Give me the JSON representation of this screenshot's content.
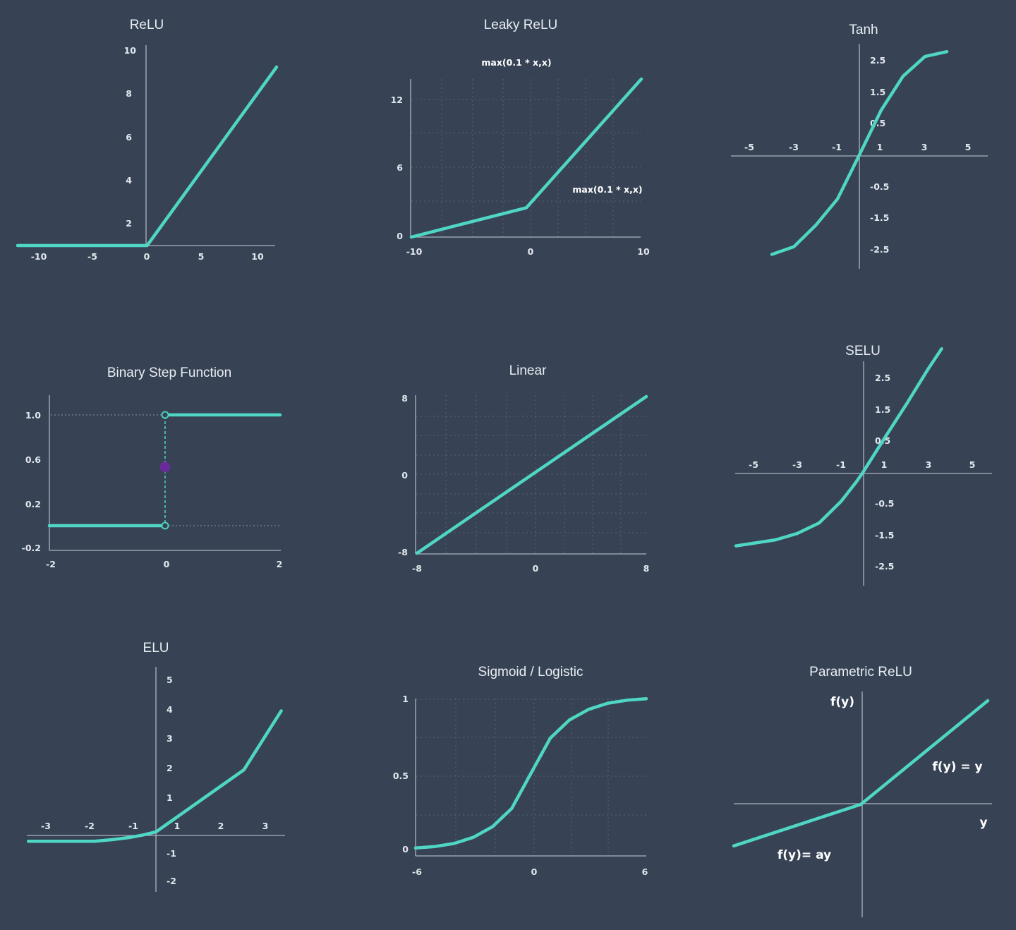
{
  "colors": {
    "background": "#374354",
    "curve": "#4fd6c4",
    "axis": "#aab3bf",
    "text": "#e8edf2",
    "marker": "#6a2b9a"
  },
  "chart_data": [
    {
      "id": "relu",
      "type": "line",
      "title": "ReLU",
      "xlim": [
        -11.5,
        11.5
      ],
      "ylim": [
        0,
        10
      ],
      "xticks": [
        "-10",
        "-5",
        "0",
        "5",
        "10"
      ],
      "yticks": [
        "2",
        "4",
        "6",
        "8",
        "10"
      ],
      "series": [
        {
          "x": [
            -11.5,
            0,
            11.5
          ],
          "y": [
            0,
            0,
            9.2
          ]
        }
      ],
      "grid": false
    },
    {
      "id": "leaky-relu",
      "type": "line",
      "title": "Leaky ReLU",
      "xlim": [
        -10,
        10
      ],
      "ylim": [
        0,
        14
      ],
      "xticks": [
        "-10",
        "0",
        "10"
      ],
      "yticks": [
        "0",
        "6",
        "12"
      ],
      "series": [
        {
          "x": [
            -10,
            0,
            10
          ],
          "y": [
            0,
            2.6,
            14
          ]
        }
      ],
      "annotations": [
        "max(0.1 * x,x)",
        "max(0.1 * x,x)"
      ],
      "grid": true
    },
    {
      "id": "tanh",
      "type": "line",
      "title": "Tanh",
      "xlim": [
        -5,
        5
      ],
      "ylim": [
        -2.5,
        2.5
      ],
      "xticks": [
        "-5",
        "-3",
        "-1",
        "1",
        "3",
        "5"
      ],
      "yticks": [
        "2.5",
        "1.5",
        "0.5",
        "-0.5",
        "-1.5",
        "-2.5"
      ],
      "series": [
        {
          "x": [
            -4,
            -3,
            -2,
            -1,
            0,
            1,
            2,
            3,
            4
          ],
          "y": [
            -2.64,
            -2.44,
            -1.87,
            -1.17,
            0,
            1.19,
            2.09,
            2.61,
            2.74
          ]
        }
      ],
      "grid": false
    },
    {
      "id": "binary-step",
      "type": "line",
      "title": "Binary Step Function",
      "xlim": [
        -2,
        2
      ],
      "ylim": [
        -0.2,
        1.0
      ],
      "xticks": [
        "-2",
        "0",
        "2"
      ],
      "yticks": [
        "1.0",
        "0.6",
        "0.2",
        "-0.2"
      ],
      "series": [
        {
          "x": [
            -2,
            0,
            0,
            2
          ],
          "y": [
            0,
            0,
            1,
            1
          ]
        }
      ],
      "marker": {
        "x": 0,
        "y": 0.5
      },
      "grid": false
    },
    {
      "id": "linear",
      "type": "line",
      "title": "Linear",
      "xlim": [
        -8,
        8
      ],
      "ylim": [
        -8,
        8
      ],
      "xticks": [
        "-8",
        "0",
        "8"
      ],
      "yticks": [
        "8",
        "0",
        "-8"
      ],
      "series": [
        {
          "x": [
            -8,
            8
          ],
          "y": [
            -8,
            8
          ]
        }
      ],
      "grid": true
    },
    {
      "id": "selu",
      "type": "line",
      "title": "SELU",
      "xlim": [
        -5,
        5
      ],
      "ylim": [
        -2.5,
        2.5
      ],
      "xticks": [
        "-5",
        "-3",
        "-1",
        "1",
        "3",
        "5"
      ],
      "yticks": [
        "2.5",
        "1.5",
        "0.5",
        "-0.5",
        "-1.5",
        "-2.5"
      ],
      "series": [
        {
          "x": [
            -5.8,
            -4,
            -3,
            -2,
            -1,
            -0.3,
            0,
            1,
            2,
            3,
            3.6
          ],
          "y": [
            -1.95,
            -1.79,
            -1.62,
            -1.34,
            -0.77,
            -0.25,
            0,
            0.92,
            1.82,
            2.76,
            3.28
          ]
        }
      ],
      "grid": false
    },
    {
      "id": "elu",
      "type": "line",
      "title": "ELU",
      "xlim": [
        -3,
        3
      ],
      "ylim": [
        -2,
        5
      ],
      "xticks": [
        "-3",
        "-2",
        "-1",
        "1",
        "2",
        "3"
      ],
      "yticks": [
        "5",
        "4",
        "3",
        "2",
        "1",
        "-1",
        "-2"
      ],
      "series": [
        {
          "x": [
            -2.9,
            -1.4,
            -1,
            -0.6,
            -0.3,
            0,
            0.5,
            1,
            2,
            2.85
          ],
          "y": [
            -0.3,
            -0.3,
            -0.25,
            -0.18,
            -0.1,
            0,
            0.5,
            1.0,
            2.0,
            3.9
          ]
        }
      ],
      "grid": false
    },
    {
      "id": "sigmoid",
      "type": "line",
      "title": "Sigmoid / Logistic",
      "xlim": [
        -6,
        6
      ],
      "ylim": [
        0,
        1
      ],
      "xticks": [
        "-6",
        "0",
        "6"
      ],
      "yticks": [
        "1",
        "0.5",
        "0"
      ],
      "series": [
        {
          "x": [
            -6,
            -5,
            -4,
            -3,
            -2,
            -1,
            0,
            1,
            2,
            3,
            4,
            5,
            6
          ],
          "y": [
            0.01,
            0.02,
            0.04,
            0.08,
            0.15,
            0.27,
            0.5,
            0.73,
            0.85,
            0.92,
            0.96,
            0.98,
            0.99
          ]
        }
      ],
      "grid": true
    },
    {
      "id": "prelu",
      "type": "line",
      "title": "Parametric ReLU",
      "xlim": [
        -1,
        1
      ],
      "ylim": [
        -1,
        1
      ],
      "xticks": [],
      "yticks": [],
      "series": [
        {
          "x": [
            -1,
            0,
            1
          ],
          "y": [
            -0.4,
            0,
            1
          ]
        }
      ],
      "annotations": [
        "f(y)",
        "f(y) = y",
        "y",
        "f(y)= ay"
      ],
      "grid": false
    }
  ]
}
